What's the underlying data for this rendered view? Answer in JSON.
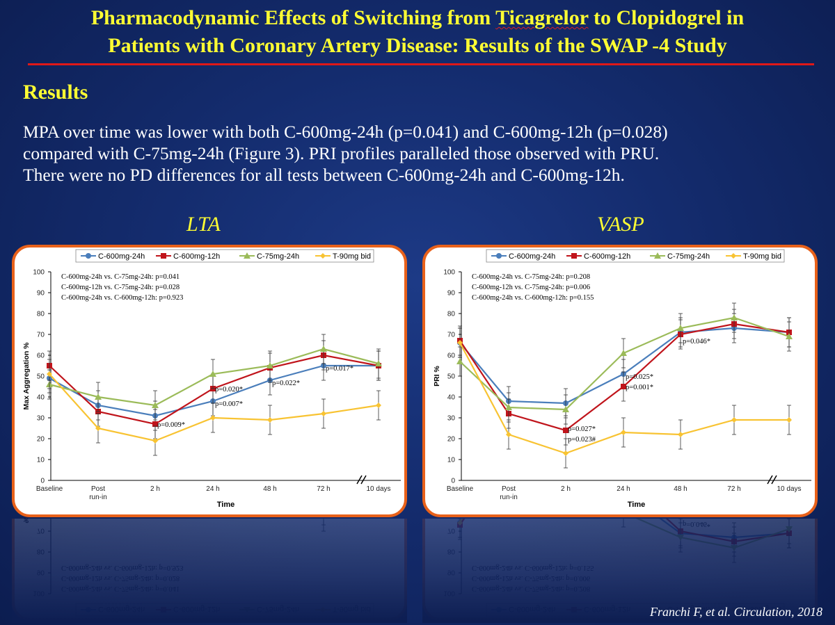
{
  "slide": {
    "title_line1_pre": "Pharmacodynamic Effects of Switching from ",
    "title_line1_drug": "Ticagrelor",
    "title_line1_post": " to Clopidogrel in",
    "title_line2": "Patients with Coronary Artery Disease: Results of the SWAP -4 Study",
    "results_heading": "Results",
    "body_line1": "MPA over time was lower with both C-600mg-24h (p=0.041) and C-600mg-12h (p=0.028)",
    "body_line2": "compared with C-75mg-24h (Figure 3). PRI profiles paralleled those observed with PRU.",
    "body_line3": "There were no PD differences for all tests between C-600mg-24h and C-600mg-12h.",
    "citation": "Franchi F, et al. Circulation, 2018"
  },
  "chart_data": [
    {
      "type": "line",
      "panel_title": "LTA",
      "xlabel": "Time",
      "ylabel": "Max Aggregation %",
      "categories": [
        "Baseline",
        "Post run-in",
        "2 h",
        "24 h",
        "48 h",
        "72 h",
        "10 days"
      ],
      "ylim": [
        0,
        100
      ],
      "yticks": [
        0,
        10,
        20,
        30,
        40,
        50,
        60,
        70,
        80,
        90,
        100
      ],
      "axis_break": "between 72 h and 10 days",
      "legend_position": "top",
      "series": [
        {
          "name": "C-600mg-24h",
          "color": "#4a7ebb",
          "marker": "circle",
          "values": [
            49,
            36,
            31,
            38,
            48,
            55,
            55
          ]
        },
        {
          "name": "C-600mg-12h",
          "color": "#c0141b",
          "marker": "square",
          "values": [
            55,
            33,
            27,
            44,
            54,
            60,
            55
          ]
        },
        {
          "name": "C-75mg-24h",
          "color": "#9bbb59",
          "marker": "triangle",
          "values": [
            46,
            40,
            36,
            51,
            55,
            63,
            56
          ]
        },
        {
          "name": "T-90mg bid",
          "color": "#f8c332",
          "marker": "diamond",
          "values": [
            51,
            25,
            19,
            30,
            29,
            32,
            36
          ]
        }
      ],
      "stat_box": [
        "C-600mg-24h  vs.  C-75mg-24h:  p=0.041",
        "C-600mg-12h  vs.  C-75mg-24h:  p=0.028",
        "C-600mg-24h  vs.  C-600mg-12h:  p=0.923"
      ],
      "annotations": [
        {
          "text": "p=0.009*",
          "x": "2 h",
          "y": 27
        },
        {
          "text": "p=0.020*",
          "x": "24 h",
          "y": 44
        },
        {
          "text": "p=0.007*",
          "x": "24 h",
          "y": 37
        },
        {
          "text": "p=0.022*",
          "x": "48 h",
          "y": 47
        },
        {
          "text": "p=0.017*",
          "x": "72 h",
          "y": 54
        }
      ]
    },
    {
      "type": "line",
      "panel_title": "VASP",
      "xlabel": "Time",
      "ylabel": "PRI %",
      "categories": [
        "Baseline",
        "Post run-in",
        "2 h",
        "24 h",
        "48 h",
        "72 h",
        "10 days"
      ],
      "ylim": [
        0,
        100
      ],
      "yticks": [
        0,
        10,
        20,
        30,
        40,
        50,
        60,
        70,
        80,
        90,
        100
      ],
      "axis_break": "between 72 h and 10 days",
      "legend_position": "top",
      "series": [
        {
          "name": "C-600mg-24h",
          "color": "#4a7ebb",
          "marker": "circle",
          "values": [
            66,
            38,
            37,
            51,
            71,
            73,
            71
          ]
        },
        {
          "name": "C-600mg-12h",
          "color": "#c0141b",
          "marker": "square",
          "values": [
            67,
            32,
            24,
            45,
            70,
            75,
            71
          ]
        },
        {
          "name": "C-75mg-24h",
          "color": "#9bbb59",
          "marker": "triangle",
          "values": [
            57,
            35,
            34,
            61,
            73,
            78,
            69
          ]
        },
        {
          "name": "T-90mg bid",
          "color": "#f8c332",
          "marker": "diamond",
          "values": [
            66,
            22,
            13,
            23,
            22,
            29,
            29
          ]
        }
      ],
      "stat_box": [
        "C-600mg-24h  vs.  C-75mg-24h:  p=0.208",
        "C-600mg-12h  vs.  C-75mg-24h:  p=0.006",
        "C-600mg-24h  vs.  C-600mg-12h:  p=0.155"
      ],
      "annotations": [
        {
          "text": "p=0.025*",
          "x": "24 h",
          "y": 50
        },
        {
          "text": "p=0.001*",
          "x": "24 h",
          "y": 45
        },
        {
          "text": "p=0.046*",
          "x": "48 h",
          "y": 67
        },
        {
          "text": "p=0.027*",
          "x": "2 h",
          "y": 25
        },
        {
          "text": "p=0.023#",
          "x": "2 h",
          "y": 20
        }
      ]
    }
  ]
}
